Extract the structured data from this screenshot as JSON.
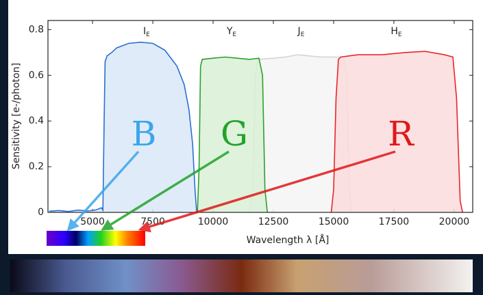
{
  "chart_data": {
    "type": "area",
    "ylabel": "Sensitivity [e-/photon]",
    "xlabel": "Wavelength λ [Å]",
    "xlim": [
      3150,
      20770
    ],
    "ylim": [
      0,
      0.84
    ],
    "xticks": [
      5000,
      7500,
      10000,
      12500,
      15000,
      17500,
      20000
    ],
    "yticks": [
      0,
      0.2,
      0.4,
      0.6,
      0.8
    ],
    "grid": false,
    "series": [
      {
        "name": "I",
        "subscript": "E",
        "color": "#2a6fd0",
        "fill": "#dbe8f8",
        "x": [
          3200,
          3600,
          4000,
          4400,
          4800,
          5100,
          5250,
          5370,
          5430,
          5480,
          5520,
          5600,
          5800,
          6000,
          6500,
          7000,
          7500,
          8000,
          8500,
          8800,
          9000,
          9150,
          9250,
          9320
        ],
        "values": [
          0.005,
          0.008,
          0.004,
          0.01,
          0.006,
          0.01,
          0.015,
          0.02,
          0.01,
          0.4,
          0.66,
          0.685,
          0.7,
          0.72,
          0.74,
          0.745,
          0.74,
          0.71,
          0.64,
          0.56,
          0.45,
          0.3,
          0.1,
          0
        ]
      },
      {
        "name": "J",
        "subscript": "E",
        "color": "#d4d4d4",
        "fill": "#f5f5f5",
        "x": [
          11500,
          11650,
          11750,
          11850,
          12500,
          13000,
          13500,
          14000,
          14500,
          15000,
          15400,
          15550,
          15650,
          15750
        ],
        "values": [
          0,
          0.1,
          0.6,
          0.67,
          0.675,
          0.68,
          0.69,
          0.685,
          0.68,
          0.68,
          0.68,
          0.6,
          0.1,
          0
        ]
      },
      {
        "name": "Y",
        "subscript": "E",
        "color": "#2ca02c",
        "fill": "#d9f0d6",
        "x": [
          9350,
          9420,
          9480,
          9550,
          10000,
          10500,
          11000,
          11500,
          11900,
          12050,
          12150,
          12250
        ],
        "values": [
          0,
          0.2,
          0.64,
          0.67,
          0.675,
          0.68,
          0.675,
          0.67,
          0.675,
          0.6,
          0.1,
          0
        ]
      },
      {
        "name": "H",
        "subscript": "E",
        "color": "#e8252b",
        "fill": "#fcdcdd",
        "x": [
          14900,
          15000,
          15100,
          15200,
          15300,
          16000,
          17000,
          18000,
          18800,
          19600,
          19950,
          20100,
          20250,
          20350
        ],
        "values": [
          0,
          0.1,
          0.5,
          0.67,
          0.68,
          0.69,
          0.69,
          0.7,
          0.705,
          0.69,
          0.68,
          0.5,
          0.05,
          0
        ]
      }
    ],
    "annotations": [
      {
        "text": "B",
        "color": "#3aa6ea"
      },
      {
        "text": "G",
        "color": "#22a32a"
      },
      {
        "text": "R",
        "color": "#e01818"
      }
    ]
  }
}
